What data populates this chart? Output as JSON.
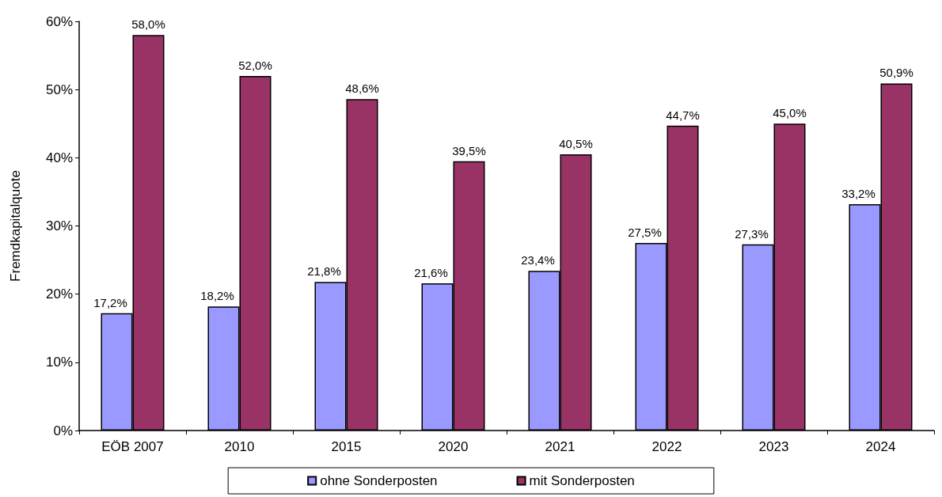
{
  "chart_data": {
    "type": "bar",
    "ylabel": "Fremdkapitalquote",
    "categories": [
      "EÖB 2007",
      "2010",
      "2015",
      "2020",
      "2021",
      "2022",
      "2023",
      "2024"
    ],
    "series": [
      {
        "name": "ohne Sonderposten",
        "color": "#9999ff",
        "values": [
          17.2,
          18.2,
          21.8,
          21.6,
          23.4,
          27.5,
          27.3,
          33.2
        ],
        "value_labels": [
          "17,2%",
          "18,2%",
          "21,8%",
          "21,6%",
          "23,4%",
          "27,5%",
          "27,3%",
          "33,2%"
        ]
      },
      {
        "name": "mit Sonderposten",
        "color": "#993366",
        "values": [
          58.0,
          52.0,
          48.6,
          39.5,
          40.5,
          44.7,
          45.0,
          50.9
        ],
        "value_labels": [
          "58,0%",
          "52,0%",
          "48,6%",
          "39,5%",
          "40,5%",
          "44,7%",
          "45,0%",
          "50,9%"
        ]
      }
    ],
    "ylim": [
      0,
      60
    ],
    "yticks": [
      {
        "value": 0,
        "label": "0%"
      },
      {
        "value": 10,
        "label": "10%"
      },
      {
        "value": 20,
        "label": "20%"
      },
      {
        "value": 30,
        "label": "30%"
      },
      {
        "value": 40,
        "label": "40%"
      },
      {
        "value": 50,
        "label": "50%"
      },
      {
        "value": 60,
        "label": "60%"
      }
    ],
    "grid": false,
    "legend": "bottom"
  }
}
